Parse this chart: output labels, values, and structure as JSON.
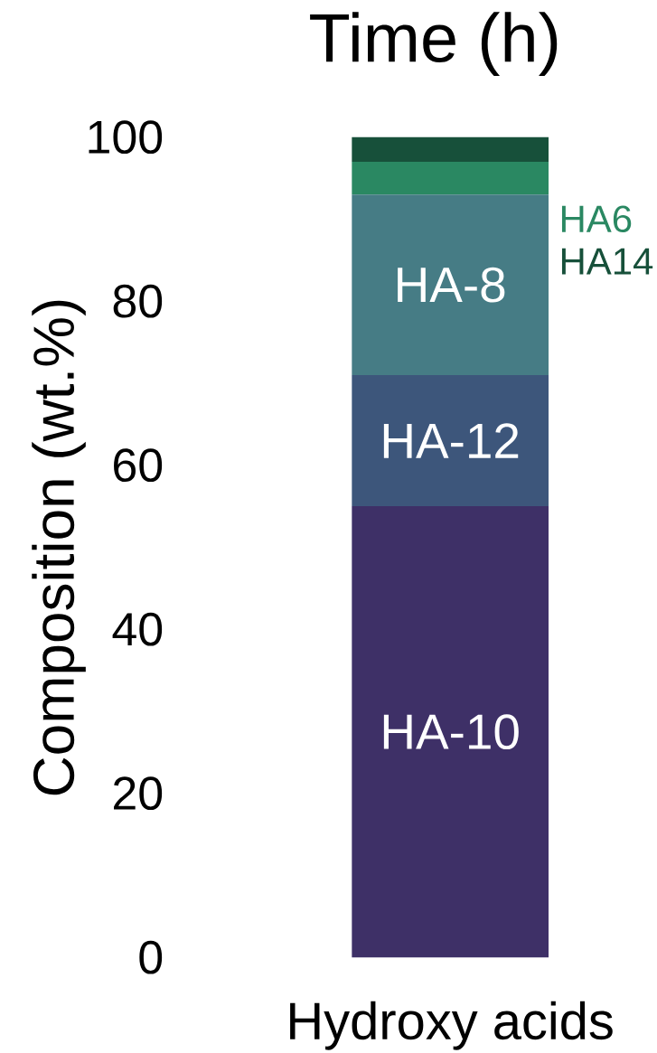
{
  "chart_data": {
    "type": "bar",
    "stacked": true,
    "title": "Time (h)",
    "ylabel": "Composition (wt.%)",
    "categories": [
      "Hydroxy acids"
    ],
    "series": [
      {
        "name": "HA-10",
        "color": "#3e3067",
        "values": [
          55
        ]
      },
      {
        "name": "HA-12",
        "color": "#3d567b",
        "values": [
          16
        ]
      },
      {
        "name": "HA-8",
        "color": "#467c85",
        "values": [
          22
        ]
      },
      {
        "name": "HA6",
        "color": "#2a8862",
        "values": [
          4
        ]
      },
      {
        "name": "HA14",
        "color": "#17503a",
        "values": [
          3
        ]
      }
    ],
    "ylim": [
      0,
      100
    ],
    "yticks": [
      0,
      20,
      40,
      60,
      80,
      100
    ],
    "grid": false,
    "legend": false
  }
}
